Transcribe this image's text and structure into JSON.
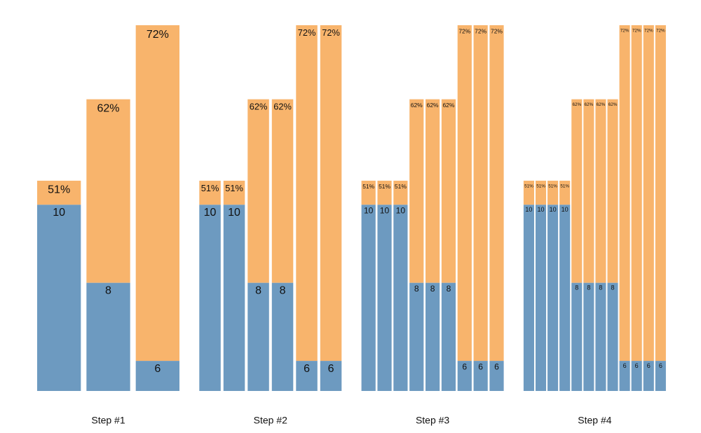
{
  "chart_data": [
    {
      "type": "bar",
      "title": "Step #1",
      "ylim": [
        5.23,
        14.6
      ],
      "y2lim": [
        22.6,
        72
      ],
      "series": [
        {
          "color": "#6d9ac0",
          "values": [
            10,
            8,
            6
          ]
        },
        {
          "color": "#f8b46c",
          "axis": "y2",
          "values": [
            51,
            62,
            72
          ],
          "value_labels": [
            "51%",
            "62%",
            "72%"
          ]
        }
      ]
    },
    {
      "type": "bar",
      "title": "Step #2",
      "ylim": [
        5.23,
        14.6
      ],
      "y2lim": [
        22.6,
        72
      ],
      "series": [
        {
          "color": "#6d9ac0",
          "values": [
            10,
            10,
            8,
            8,
            6,
            6
          ]
        },
        {
          "color": "#f8b46c",
          "axis": "y2",
          "values": [
            51,
            51,
            62,
            62,
            72,
            72
          ],
          "value_labels": [
            "51%",
            "51%",
            "62%",
            "62%",
            "72%",
            "72%"
          ]
        }
      ]
    },
    {
      "type": "bar",
      "title": "Step #3",
      "ylim": [
        5.23,
        14.6
      ],
      "y2lim": [
        22.6,
        72
      ],
      "series": [
        {
          "color": "#6d9ac0",
          "values": [
            10,
            10,
            10,
            8,
            8,
            8,
            6,
            6,
            6
          ]
        },
        {
          "color": "#f8b46c",
          "axis": "y2",
          "values": [
            51,
            51,
            51,
            62,
            62,
            62,
            72,
            72,
            72
          ],
          "value_labels": [
            "51%",
            "51%",
            "51%",
            "62%",
            "62%",
            "62%",
            "72%",
            "72%",
            "72%"
          ]
        }
      ]
    },
    {
      "type": "bar",
      "title": "Step #4",
      "ylim": [
        5.23,
        14.6
      ],
      "y2lim": [
        22.6,
        72
      ],
      "series": [
        {
          "color": "#6d9ac0",
          "values": [
            10,
            10,
            10,
            10,
            8,
            8,
            8,
            8,
            6,
            6,
            6,
            6
          ]
        },
        {
          "color": "#f8b46c",
          "axis": "y2",
          "values": [
            51,
            51,
            51,
            51,
            62,
            62,
            62,
            62,
            72,
            72,
            72,
            72
          ],
          "value_labels": [
            "51%",
            "51%",
            "51%",
            "51%",
            "62%",
            "62%",
            "62%",
            "62%",
            "72%",
            "72%",
            "72%",
            "72%"
          ]
        }
      ]
    }
  ]
}
